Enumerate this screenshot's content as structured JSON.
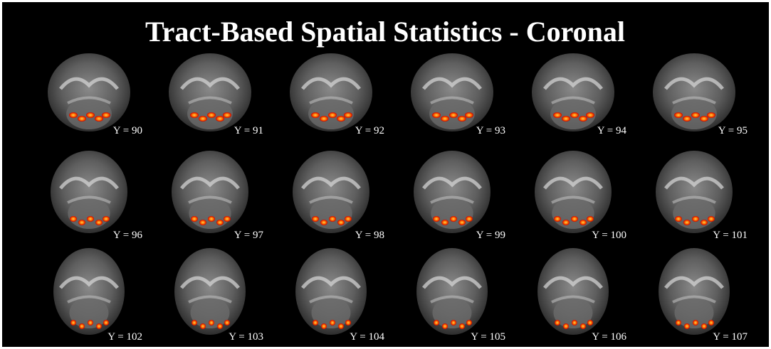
{
  "title": "Tract-Based Spatial Statistics - Coronal",
  "slices": [
    "Y = 90",
    "Y = 91",
    "Y = 92",
    "Y = 93",
    "Y = 94",
    "Y = 95",
    "Y = 96",
    "Y = 97",
    "Y = 98",
    "Y = 99",
    "Y = 100",
    "Y = 101",
    "Y = 102",
    "Y = 103",
    "Y = 104",
    "Y = 105",
    "Y = 106",
    "Y = 107"
  ]
}
